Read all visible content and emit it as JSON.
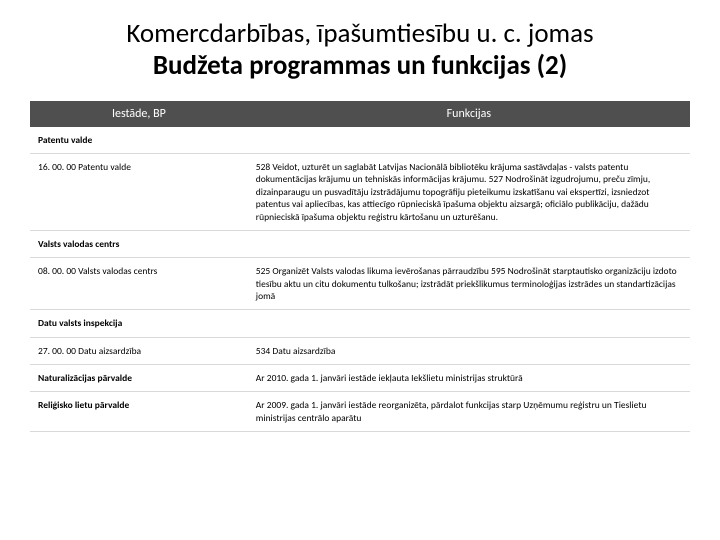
{
  "title": {
    "line1": "Komercdarbības, īpašumtiesību u. c. jomas",
    "line2": "Budžeta programmas un funkcijas (2)"
  },
  "table": {
    "columns": [
      "Iestāde, BP",
      "Funkcijas"
    ],
    "column_widths": [
      "33%",
      "67%"
    ],
    "header_bg": "#4f4f4f",
    "header_fg": "#ffffff",
    "border_color": "#d9d9d9",
    "font_size_header": 12,
    "font_size_body": 9.5,
    "rows": [
      {
        "c1": "Patentu valde",
        "c2": "",
        "c1_bold": true
      },
      {
        "c1": "16. 00. 00 Patentu valde",
        "c2": "528 Veidot, uzturēt un saglabāt Latvijas Nacionālā bibliotēku krājuma sastāvdaļas - valsts patentu dokumentācijas krājumu un tehniskās informācijas krājumu. 527 Nodrošināt izgudrojumu, preču zīmju, dizainparaugu un pusvadītāju izstrādājumu topogrāfiju pieteikumu izskatīšanu vai ekspertīzi, izsniedzot patentus vai apliecības, kas attiecīgo rūpnieciskā īpašuma objektu aizsargā; oficiālo publikāciju, dažādu rūpnieciskā īpašuma objektu reģistru kārtošanu un uzturēšanu.",
        "c1_bold": false
      },
      {
        "c1": "Valsts valodas centrs",
        "c2": "",
        "c1_bold": true
      },
      {
        "c1": "08. 00. 00 Valsts valodas centrs",
        "c2": "525 Organizēt Valsts valodas likuma ievērošanas pārraudzību 595 Nodrošināt starptautisko organizāciju izdoto tiesību aktu un citu dokumentu tulkošanu; izstrādāt priekšlikumus terminoloģijas izstrādes un standartizācijas jomā",
        "c1_bold": false
      },
      {
        "c1": "Datu valsts inspekcija",
        "c2": "",
        "c1_bold": true
      },
      {
        "c1": "27. 00. 00 Datu aizsardzība",
        "c2": "534 Datu aizsardzība",
        "c1_bold": false
      },
      {
        "c1": "Naturalizācijas pārvalde",
        "c2": "Ar 2010. gada 1. janvāri iestāde iekļauta Iekšlietu ministrijas struktūrā",
        "c1_bold": true
      },
      {
        "c1": "Reliģisko lietu pārvalde",
        "c2": "Ar 2009. gada 1. janvāri iestāde reorganizēta, pārdalot funkcijas starp Uzņēmumu reģistru un Tieslietu ministrijas centrālo aparātu",
        "c1_bold": true
      }
    ]
  }
}
